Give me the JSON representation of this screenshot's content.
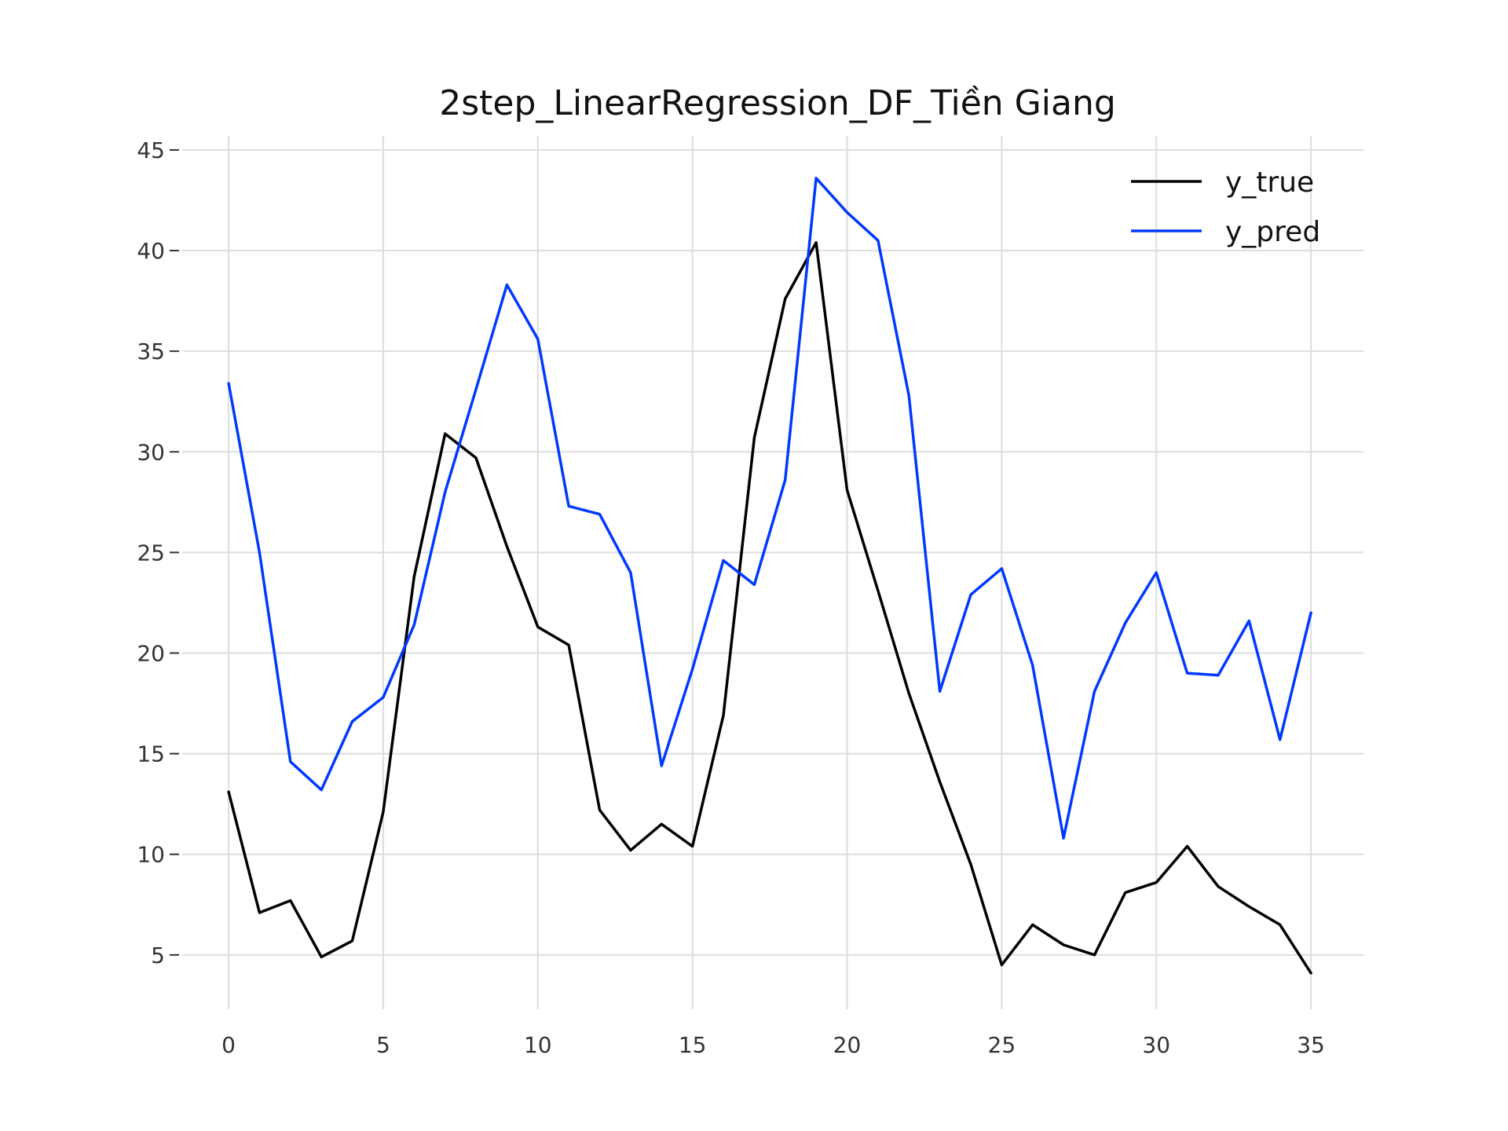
{
  "chart_data": {
    "type": "line",
    "title": "2step_LinearRegression_DF_Tiền Giang",
    "xlabel": "",
    "ylabel": "",
    "xlim": [
      -1.5,
      36.7
    ],
    "ylim": [
      2.3,
      45.7
    ],
    "x_ticks": [
      0,
      5,
      10,
      15,
      20,
      25,
      30,
      35
    ],
    "y_ticks": [
      5,
      10,
      15,
      20,
      25,
      30,
      35,
      40,
      45
    ],
    "grid": true,
    "legend_position": "top-right",
    "x": [
      0,
      1,
      2,
      3,
      4,
      5,
      6,
      7,
      8,
      9,
      10,
      11,
      12,
      13,
      14,
      15,
      16,
      17,
      18,
      19,
      20,
      21,
      22,
      23,
      24,
      25,
      26,
      27,
      28,
      29,
      30,
      31,
      32,
      33,
      34,
      35
    ],
    "series": [
      {
        "name": "y_true",
        "color": "#000000",
        "values": [
          13.1,
          7.1,
          7.7,
          4.9,
          5.7,
          12.1,
          23.8,
          30.9,
          29.7,
          25.3,
          21.3,
          20.4,
          12.2,
          10.2,
          11.5,
          10.4,
          16.9,
          30.7,
          37.6,
          40.4,
          28.1,
          23.1,
          18.0,
          13.6,
          9.5,
          4.5,
          6.5,
          5.5,
          5.0,
          8.1,
          8.6,
          10.4,
          8.4,
          7.4,
          6.5,
          4.1
        ]
      },
      {
        "name": "y_pred",
        "color": "#0039ff",
        "values": [
          33.4,
          25.0,
          14.6,
          13.2,
          16.6,
          17.8,
          21.4,
          28.0,
          33.1,
          38.3,
          35.6,
          27.3,
          26.9,
          24.0,
          14.4,
          19.2,
          24.6,
          23.4,
          28.6,
          43.6,
          41.9,
          40.5,
          32.8,
          18.1,
          22.9,
          24.2,
          19.4,
          10.8,
          18.1,
          21.5,
          24.0,
          19.0,
          18.9,
          21.6,
          15.7,
          22.0
        ]
      }
    ]
  }
}
